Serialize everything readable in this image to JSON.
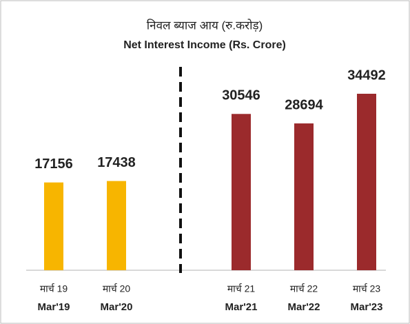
{
  "chart_data": {
    "type": "bar",
    "title_hindi": "निवल ब्याज आय (रु.करोड़)",
    "title": "Net Interest Income (Rs. Crore)",
    "categories_hindi": [
      "मार्च 19",
      "मार्च 20",
      "मार्च 21",
      "मार्च 22",
      "मार्च 23"
    ],
    "categories": [
      "Mar'19",
      "Mar'20",
      "Mar'21",
      "Mar'22",
      "Mar'23"
    ],
    "values": [
      17156,
      17438,
      30546,
      28694,
      34492
    ],
    "colors": [
      "#f7b500",
      "#f7b500",
      "#9b2a2c",
      "#9b2a2c",
      "#9b2a2c"
    ]
  }
}
